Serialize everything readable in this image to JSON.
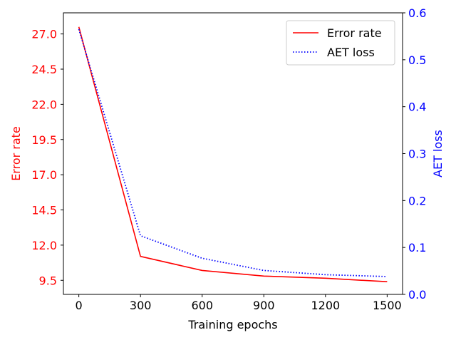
{
  "chart_data": {
    "type": "line",
    "x": [
      0,
      300,
      600,
      900,
      1200,
      1500
    ],
    "xlabel": "Training epochs",
    "xticks": [
      0,
      300,
      600,
      900,
      1200,
      1500
    ],
    "xtick_labels": [
      "0",
      "300",
      "600",
      "900",
      "1200",
      "1500"
    ],
    "xlim": [
      -75,
      1575
    ],
    "left_axis": {
      "label": "Error rate",
      "color": "#ff0000",
      "ylim": [
        8.5,
        28.5
      ],
      "ticks": [
        9.5,
        12.0,
        14.5,
        17.0,
        19.5,
        22.0,
        24.5,
        27.0
      ],
      "tick_labels": [
        "9.5",
        "12.0",
        "14.5",
        "17.0",
        "19.5",
        "22.0",
        "24.5",
        "27.0"
      ]
    },
    "right_axis": {
      "label": "AET loss",
      "color": "#0000ff",
      "ylim": [
        0.0,
        0.6
      ],
      "ticks": [
        0.0,
        0.1,
        0.2,
        0.3,
        0.4,
        0.5,
        0.6
      ],
      "tick_labels": [
        "0.0",
        "0.1",
        "0.2",
        "0.3",
        "0.4",
        "0.5",
        "0.6"
      ]
    },
    "series": [
      {
        "name": "Error rate",
        "axis": "left",
        "color": "#ff0000",
        "style": "solid",
        "values": [
          27.5,
          11.2,
          10.2,
          9.8,
          9.65,
          9.4
        ]
      },
      {
        "name": "AET loss",
        "axis": "right",
        "color": "#0000ff",
        "style": "dotted",
        "values": [
          0.565,
          0.125,
          0.077,
          0.051,
          0.042,
          0.038
        ]
      }
    ],
    "legend": {
      "position": "top-right",
      "entries": [
        "Error rate",
        "AET loss"
      ]
    }
  }
}
